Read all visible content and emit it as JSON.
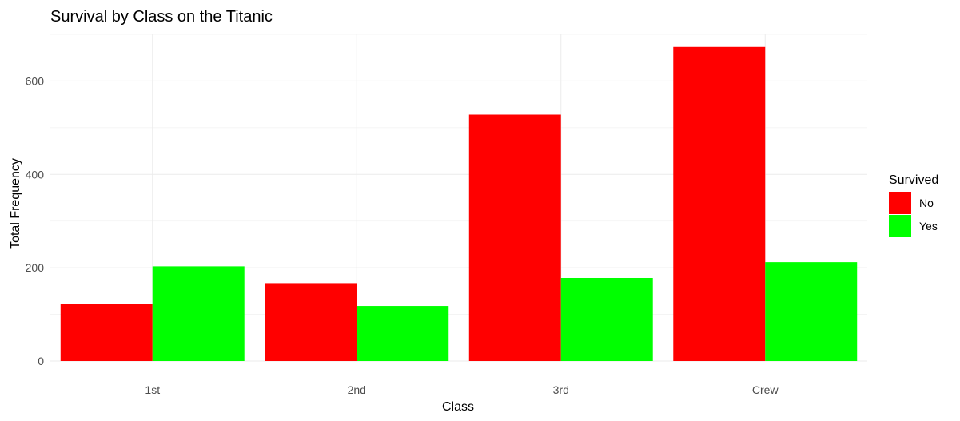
{
  "chart_data": {
    "type": "bar",
    "title": "Survival by Class on the Titanic",
    "xlabel": "Class",
    "ylabel": "Total Frequency",
    "categories": [
      "1st",
      "2nd",
      "3rd",
      "Crew"
    ],
    "series": [
      {
        "name": "No",
        "color": "#ff0000",
        "values": [
          122,
          167,
          528,
          673
        ]
      },
      {
        "name": "Yes",
        "color": "#00ff00",
        "values": [
          203,
          118,
          178,
          212
        ]
      }
    ],
    "ylim": [
      0,
      700
    ],
    "yticks": [
      0,
      200,
      400,
      600
    ],
    "grid": true,
    "legend": {
      "title": "Survived",
      "placement": "right"
    }
  }
}
